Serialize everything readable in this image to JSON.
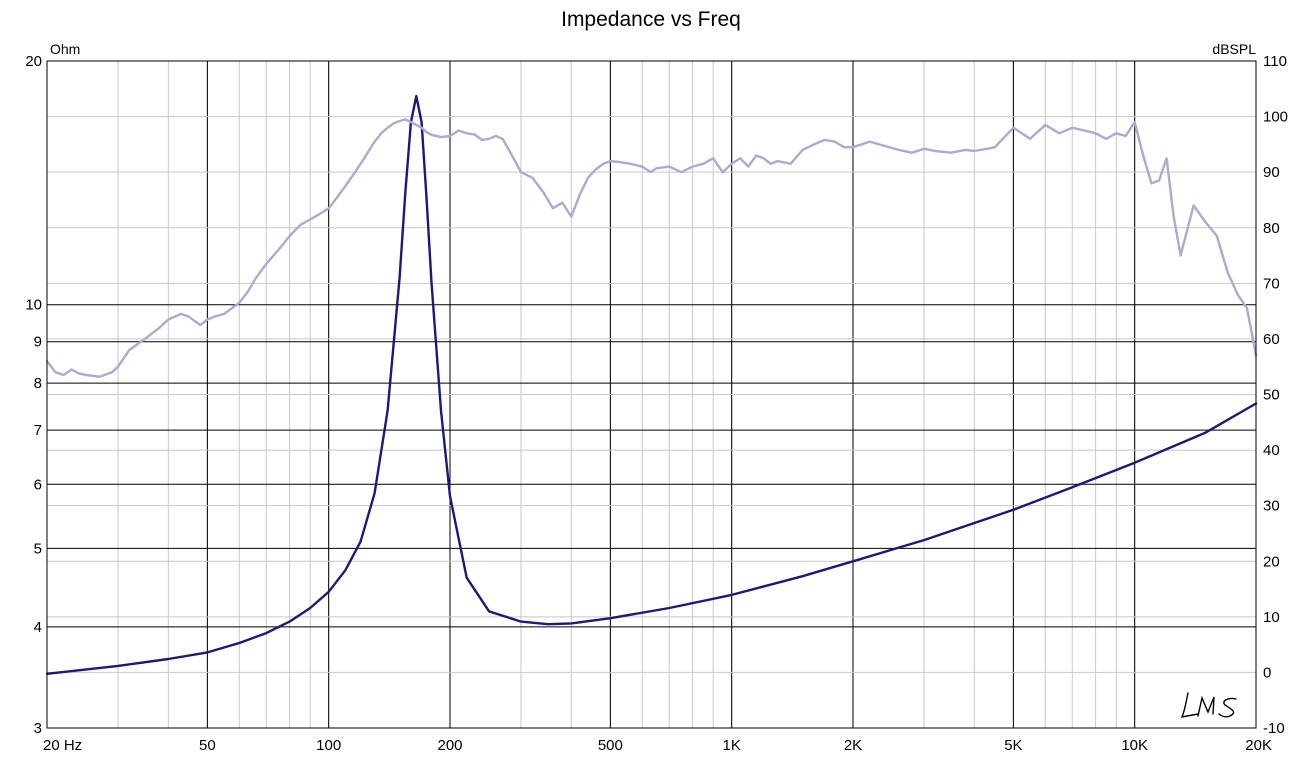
{
  "chart_data": {
    "type": "line",
    "title": "Impedance vs Freq",
    "x_scale": "log",
    "xlim": [
      20,
      20000
    ],
    "x_tick_labels": [
      {
        "v": 20,
        "label": "20  Hz"
      },
      {
        "v": 50,
        "label": "50"
      },
      {
        "v": 100,
        "label": "100"
      },
      {
        "v": 200,
        "label": "200"
      },
      {
        "v": 500,
        "label": "500"
      },
      {
        "v": 1000,
        "label": "1K"
      },
      {
        "v": 2000,
        "label": "2K"
      },
      {
        "v": 5000,
        "label": "5K"
      },
      {
        "v": 10000,
        "label": "10K"
      },
      {
        "v": 20000,
        "label": "20K"
      }
    ],
    "y_left": {
      "unit": "Ohm",
      "scale": "log",
      "lim": [
        3,
        20
      ],
      "ticks": [
        3,
        4,
        5,
        6,
        7,
        8,
        9,
        10,
        20
      ]
    },
    "y_right": {
      "unit": "dBSPL",
      "scale": "linear",
      "lim": [
        -10,
        110
      ],
      "ticks": [
        -10,
        0,
        10,
        20,
        30,
        40,
        50,
        60,
        70,
        80,
        90,
        100,
        110
      ]
    },
    "grid": true,
    "legend": "none",
    "series": [
      {
        "axis": "left",
        "color": "#1a1a7a",
        "x": [
          20,
          30,
          40,
          50,
          60,
          70,
          80,
          90,
          100,
          110,
          120,
          130,
          140,
          150,
          155,
          160,
          165,
          170,
          175,
          180,
          190,
          200,
          220,
          250,
          300,
          350,
          400,
          500,
          700,
          1000,
          1500,
          2000,
          3000,
          5000,
          7000,
          10000,
          15000,
          20000
        ],
        "y": [
          3.5,
          3.58,
          3.65,
          3.72,
          3.82,
          3.93,
          4.06,
          4.22,
          4.42,
          4.7,
          5.1,
          5.85,
          7.4,
          10.8,
          13.8,
          16.8,
          18.1,
          16.8,
          13.5,
          10.6,
          7.4,
          5.8,
          4.6,
          4.18,
          4.06,
          4.03,
          4.04,
          4.1,
          4.22,
          4.38,
          4.62,
          4.82,
          5.12,
          5.58,
          5.95,
          6.38,
          6.95,
          7.55
        ]
      },
      {
        "axis": "right",
        "color": "#aaaad2",
        "x": [
          20,
          21,
          22,
          23,
          24,
          25,
          27,
          29,
          30,
          32,
          35,
          38,
          40,
          43,
          45,
          48,
          50,
          52,
          55,
          60,
          63,
          66,
          70,
          75,
          80,
          85,
          90,
          95,
          100,
          105,
          110,
          115,
          120,
          125,
          130,
          135,
          140,
          145,
          150,
          155,
          160,
          165,
          170,
          175,
          180,
          190,
          200,
          210,
          220,
          230,
          240,
          250,
          260,
          270,
          280,
          290,
          300,
          320,
          340,
          360,
          380,
          400,
          420,
          440,
          460,
          480,
          500,
          530,
          560,
          600,
          630,
          650,
          700,
          750,
          800,
          850,
          900,
          950,
          1000,
          1050,
          1100,
          1150,
          1200,
          1250,
          1300,
          1400,
          1500,
          1600,
          1700,
          1800,
          1900,
          2000,
          2200,
          2400,
          2600,
          2800,
          3000,
          3200,
          3500,
          3800,
          4000,
          4300,
          4500,
          5000,
          5500,
          6000,
          6500,
          7000,
          7500,
          8000,
          8500,
          9000,
          9500,
          10000,
          10500,
          11000,
          11500,
          12000,
          12500,
          13000,
          14000,
          15000,
          16000,
          17000,
          18000,
          19000,
          20000
        ],
        "y": [
          56,
          54,
          53.5,
          54.5,
          53.8,
          53.5,
          53.2,
          54,
          55,
          58,
          60,
          62,
          63.5,
          64.5,
          64,
          62.5,
          63.5,
          64,
          64.5,
          66.5,
          68.5,
          71,
          73.5,
          76,
          78.5,
          80.5,
          81.5,
          82.5,
          83.5,
          85.5,
          87.5,
          89.5,
          91.5,
          93.5,
          95.5,
          97,
          98,
          98.8,
          99.2,
          99.5,
          99,
          98.5,
          98,
          97.2,
          96.7,
          96.3,
          96.5,
          97.5,
          97,
          96.8,
          95.8,
          96,
          96.5,
          96,
          94,
          92,
          90,
          89,
          86.5,
          83.5,
          84.5,
          82,
          86,
          89,
          90.5,
          91.5,
          92,
          91.8,
          91.5,
          91,
          90,
          90.7,
          91,
          90,
          91,
          91.5,
          92.5,
          90,
          91.5,
          92.5,
          91,
          93,
          92.5,
          91.5,
          92,
          91.5,
          94,
          95,
          95.8,
          95.5,
          94.5,
          94.5,
          95.5,
          94.7,
          94,
          93.5,
          94.2,
          93.8,
          93.5,
          94,
          93.8,
          94.2,
          94.5,
          98,
          96,
          98.5,
          97,
          98,
          97.5,
          97,
          96,
          97,
          96.5,
          99,
          93,
          88,
          88.5,
          92.5,
          82,
          75,
          84,
          81,
          78.5,
          72,
          68,
          65.5,
          57
        ]
      }
    ]
  },
  "watermark": "LMS"
}
